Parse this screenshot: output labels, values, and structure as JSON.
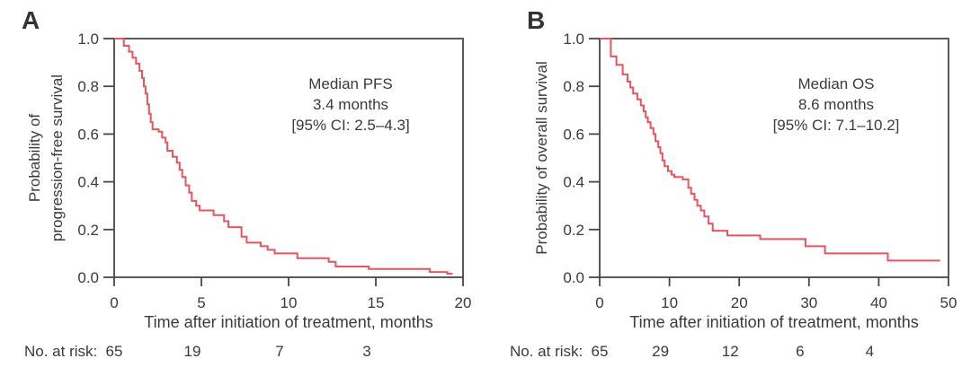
{
  "figure": {
    "background": "#ffffff",
    "axis_color": "#474747",
    "text_color": "#3a3a3a",
    "curve_color": "#e8545e"
  },
  "chart_data": [
    {
      "type": "line",
      "subtype": "kaplan-meier-step",
      "panel": "A",
      "ylabel_lines": [
        "Probability of",
        "progression-free survival"
      ],
      "xlabel": "Time after initiation of treatment, months",
      "annotation_lines": [
        "Median PFS",
        "3.4 months",
        "[95% CI: 2.5–4.3]"
      ],
      "xlim": [
        0,
        20
      ],
      "ylim": [
        0.0,
        1.0
      ],
      "xticks": [
        0,
        5,
        10,
        15,
        20
      ],
      "yticks": [
        1.0,
        0.8,
        0.6,
        0.4,
        0.2,
        0.0
      ],
      "grid": false,
      "steps": [
        [
          0,
          1.0
        ],
        [
          0.55,
          0.97
        ],
        [
          0.85,
          0.945
        ],
        [
          1.05,
          0.92
        ],
        [
          1.25,
          0.895
        ],
        [
          1.45,
          0.865
        ],
        [
          1.6,
          0.835
        ],
        [
          1.7,
          0.8
        ],
        [
          1.8,
          0.77
        ],
        [
          1.9,
          0.725
        ],
        [
          2.0,
          0.685
        ],
        [
          2.1,
          0.65
        ],
        [
          2.2,
          0.62
        ],
        [
          2.55,
          0.61
        ],
        [
          2.75,
          0.585
        ],
        [
          2.95,
          0.565
        ],
        [
          3.05,
          0.53
        ],
        [
          3.35,
          0.505
        ],
        [
          3.6,
          0.48
        ],
        [
          3.75,
          0.45
        ],
        [
          3.9,
          0.42
        ],
        [
          4.1,
          0.385
        ],
        [
          4.3,
          0.355
        ],
        [
          4.45,
          0.32
        ],
        [
          4.7,
          0.3
        ],
        [
          4.9,
          0.28
        ],
        [
          5.7,
          0.26
        ],
        [
          6.3,
          0.235
        ],
        [
          6.55,
          0.21
        ],
        [
          7.3,
          0.17
        ],
        [
          7.6,
          0.145
        ],
        [
          8.4,
          0.13
        ],
        [
          8.8,
          0.115
        ],
        [
          9.2,
          0.1
        ],
        [
          10.5,
          0.08
        ],
        [
          12.3,
          0.065
        ],
        [
          12.7,
          0.045
        ],
        [
          14.6,
          0.035
        ],
        [
          18.1,
          0.022
        ],
        [
          19.1,
          0.015
        ]
      ],
      "end_time": 19.4,
      "risk": {
        "label": "No. at risk:",
        "times": [
          0,
          5,
          10,
          15
        ],
        "values": [
          65,
          19,
          7,
          3
        ]
      }
    },
    {
      "type": "line",
      "subtype": "kaplan-meier-step",
      "panel": "B",
      "ylabel_lines": [
        "Probability of overall survival"
      ],
      "xlabel": "Time after initiation of treatment, months",
      "annotation_lines": [
        "Median OS",
        "8.6 months",
        "[95% CI: 7.1–10.2]"
      ],
      "xlim": [
        0,
        50
      ],
      "ylim": [
        0.0,
        1.0
      ],
      "xticks": [
        0,
        10,
        20,
        30,
        40,
        50
      ],
      "yticks": [
        1.0,
        0.8,
        0.6,
        0.4,
        0.2,
        0.0
      ],
      "grid": false,
      "steps": [
        [
          0,
          1.0
        ],
        [
          1.6,
          0.925
        ],
        [
          2.4,
          0.89
        ],
        [
          3.3,
          0.85
        ],
        [
          4.0,
          0.82
        ],
        [
          4.4,
          0.795
        ],
        [
          4.8,
          0.77
        ],
        [
          5.4,
          0.745
        ],
        [
          5.9,
          0.72
        ],
        [
          6.3,
          0.695
        ],
        [
          6.6,
          0.67
        ],
        [
          6.9,
          0.65
        ],
        [
          7.3,
          0.625
        ],
        [
          7.7,
          0.6
        ],
        [
          8.0,
          0.57
        ],
        [
          8.4,
          0.545
        ],
        [
          8.7,
          0.52
        ],
        [
          9.0,
          0.49
        ],
        [
          9.3,
          0.465
        ],
        [
          9.8,
          0.445
        ],
        [
          10.3,
          0.43
        ],
        [
          10.7,
          0.42
        ],
        [
          11.9,
          0.41
        ],
        [
          12.7,
          0.375
        ],
        [
          13.1,
          0.35
        ],
        [
          13.6,
          0.325
        ],
        [
          14.0,
          0.3
        ],
        [
          14.5,
          0.28
        ],
        [
          15.0,
          0.255
        ],
        [
          15.6,
          0.225
        ],
        [
          16.2,
          0.195
        ],
        [
          18.3,
          0.175
        ],
        [
          23.0,
          0.16
        ],
        [
          29.5,
          0.13
        ],
        [
          32.3,
          0.1
        ],
        [
          41.3,
          0.07
        ]
      ],
      "end_time": 48.8,
      "risk": {
        "label": "No. at risk:",
        "times": [
          0,
          10,
          20,
          30,
          40
        ],
        "values": [
          65,
          29,
          12,
          6,
          4
        ]
      }
    }
  ]
}
